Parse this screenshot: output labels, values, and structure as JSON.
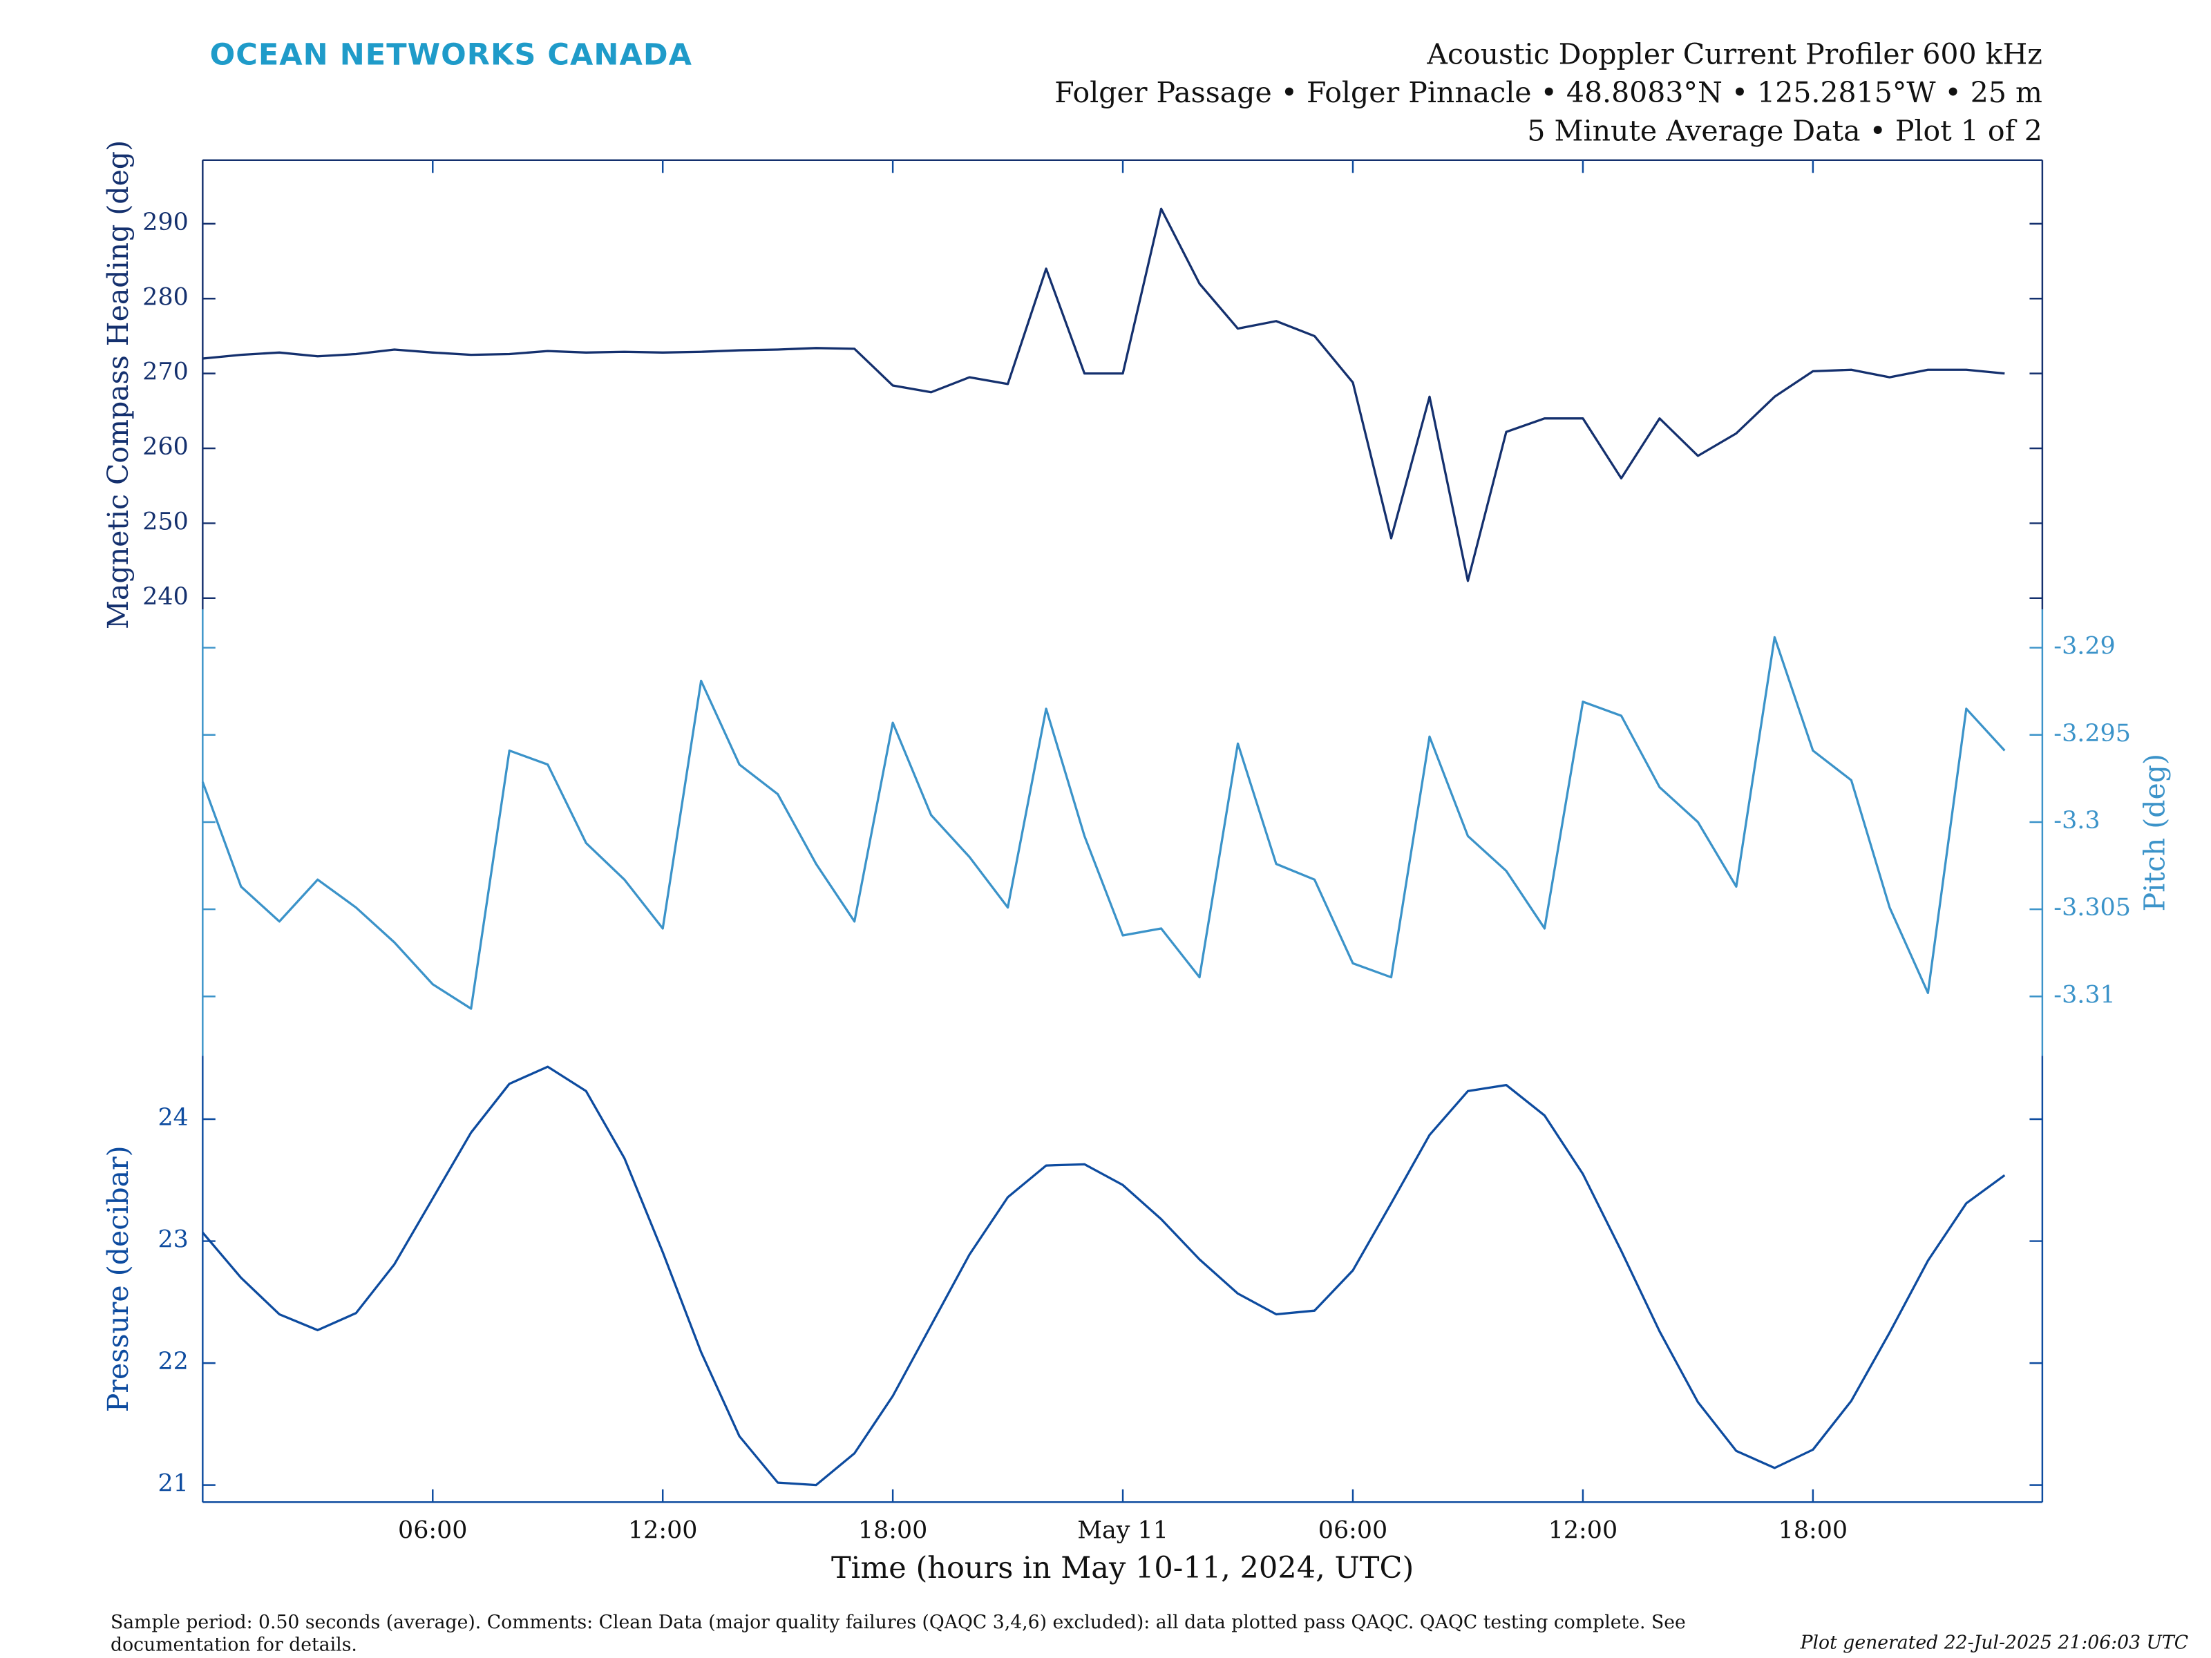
{
  "page": {
    "logo": "OCEAN NETWORKS CANADA",
    "title_lines": [
      "Acoustic Doppler Current Profiler 600 kHz",
      "Folger Passage • Folger Pinnacle • 48.8083°N • 125.2815°W • 25 m",
      "5 Minute Average Data • Plot 1 of 2"
    ],
    "comment": "Sample period: 0.50 seconds (average). Comments: Clean Data (major quality failures (QAQC 3,4,6) excluded): all data plotted pass QAQC. QAQC testing complete. See documentation for details.",
    "generated": "Plot generated 22-Jul-2025 21:06:03 UTC"
  },
  "chart_data": [
    {
      "type": "line",
      "ylabel": "Magnetic Compass Heading (deg)",
      "yaxis": "left",
      "color": "#14306e",
      "xlim": [
        "2024-05-10T00:00",
        "2024-05-11T23:59"
      ],
      "x": [
        "2024-05-10T00:00",
        "2024-05-10T01:00",
        "2024-05-10T02:00",
        "2024-05-10T03:00",
        "2024-05-10T04:00",
        "2024-05-10T05:00",
        "2024-05-10T06:00",
        "2024-05-10T07:00",
        "2024-05-10T08:00",
        "2024-05-10T09:00",
        "2024-05-10T10:00",
        "2024-05-10T11:00",
        "2024-05-10T12:00",
        "2024-05-10T13:00",
        "2024-05-10T14:00",
        "2024-05-10T15:00",
        "2024-05-10T16:00",
        "2024-05-10T17:00",
        "2024-05-10T18:00",
        "2024-05-10T19:00",
        "2024-05-10T20:00",
        "2024-05-10T21:00",
        "2024-05-10T22:00",
        "2024-05-10T23:00",
        "2024-05-11T00:00",
        "2024-05-11T01:00",
        "2024-05-11T02:00",
        "2024-05-11T03:00",
        "2024-05-11T04:00",
        "2024-05-11T05:00",
        "2024-05-11T06:00",
        "2024-05-11T07:00",
        "2024-05-11T08:00",
        "2024-05-11T09:00",
        "2024-05-11T10:00",
        "2024-05-11T11:00",
        "2024-05-11T12:00",
        "2024-05-11T13:00",
        "2024-05-11T14:00",
        "2024-05-11T15:00",
        "2024-05-11T16:00",
        "2024-05-11T17:00",
        "2024-05-11T18:00",
        "2024-05-11T19:00",
        "2024-05-11T20:00",
        "2024-05-11T21:00",
        "2024-05-11T22:00",
        "2024-05-11T23:00"
      ],
      "values": [
        272,
        272.5,
        272.8,
        272.3,
        272.6,
        273.2,
        272.8,
        272.5,
        272.6,
        273,
        272.8,
        272.9,
        272.8,
        272.9,
        273.1,
        273.2,
        273.4,
        273.3,
        268.4,
        267.5,
        269.5,
        268.6,
        284,
        270,
        270,
        292,
        282,
        276,
        277,
        275,
        268.8,
        248,
        266.9,
        242.3,
        262.2,
        264,
        264,
        256,
        264,
        259,
        262,
        266.9,
        270.3,
        270.5,
        269.5,
        270.5,
        270.5,
        270
      ],
      "ylim": [
        238.5,
        298.5
      ],
      "yticks": [
        240,
        250,
        260,
        270,
        280,
        290
      ]
    },
    {
      "type": "line",
      "ylabel": "Pitch (deg)",
      "yaxis": "right",
      "color": "#3b93c9",
      "xlim": [
        "2024-05-10T00:00",
        "2024-05-11T23:59"
      ],
      "x": [
        "2024-05-10T00:00",
        "2024-05-10T01:00",
        "2024-05-10T02:00",
        "2024-05-10T03:00",
        "2024-05-10T04:00",
        "2024-05-10T05:00",
        "2024-05-10T06:00",
        "2024-05-10T07:00",
        "2024-05-10T08:00",
        "2024-05-10T09:00",
        "2024-05-10T10:00",
        "2024-05-10T11:00",
        "2024-05-10T12:00",
        "2024-05-10T13:00",
        "2024-05-10T14:00",
        "2024-05-10T15:00",
        "2024-05-10T16:00",
        "2024-05-10T17:00",
        "2024-05-10T18:00",
        "2024-05-10T19:00",
        "2024-05-10T20:00",
        "2024-05-10T21:00",
        "2024-05-10T22:00",
        "2024-05-10T23:00",
        "2024-05-11T00:00",
        "2024-05-11T01:00",
        "2024-05-11T02:00",
        "2024-05-11T03:00",
        "2024-05-11T04:00",
        "2024-05-11T05:00",
        "2024-05-11T06:00",
        "2024-05-11T07:00",
        "2024-05-11T08:00",
        "2024-05-11T09:00",
        "2024-05-11T10:00",
        "2024-05-11T11:00",
        "2024-05-11T12:00",
        "2024-05-11T13:00",
        "2024-05-11T14:00",
        "2024-05-11T15:00",
        "2024-05-11T16:00",
        "2024-05-11T17:00",
        "2024-05-11T18:00",
        "2024-05-11T19:00",
        "2024-05-11T20:00",
        "2024-05-11T21:00",
        "2024-05-11T22:00",
        "2024-05-11T23:00"
      ],
      "values": [
        -3.2977,
        -3.3037,
        -3.3057,
        -3.3033,
        -3.3049,
        -3.3069,
        -3.3093,
        -3.3107,
        -3.2959,
        -3.2967,
        -3.3012,
        -3.3033,
        -3.3061,
        -3.2919,
        -3.2967,
        -3.2984,
        -3.3024,
        -3.3057,
        -3.2943,
        -3.2996,
        -3.302,
        -3.3049,
        -3.2935,
        -3.3008,
        -3.3065,
        -3.3061,
        -3.3089,
        -3.2955,
        -3.3024,
        -3.3033,
        -3.3081,
        -3.3089,
        -3.2951,
        -3.3008,
        -3.3028,
        -3.3061,
        -3.2931,
        -3.2939,
        -3.298,
        -3.3,
        -3.3037,
        -3.2894,
        -3.2959,
        -3.2976,
        -3.3049,
        -3.3098,
        -3.2935,
        -3.2959
      ],
      "ylim": [
        -3.3134,
        -3.2878
      ],
      "yticks": [
        -3.31,
        -3.305,
        -3.3,
        -3.295,
        -3.29
      ]
    },
    {
      "type": "line",
      "ylabel": "Pressure (decibar)",
      "yaxis": "left",
      "color": "#0d4b9f",
      "xlabel": "Time (hours in May 10-11, 2024, UTC)",
      "xlim": [
        "2024-05-10T00:00",
        "2024-05-11T23:59"
      ],
      "xticks": [
        {
          "value": "2024-05-10T06:00",
          "label": "06:00"
        },
        {
          "value": "2024-05-10T12:00",
          "label": "12:00"
        },
        {
          "value": "2024-05-10T18:00",
          "label": "18:00"
        },
        {
          "value": "2024-05-11T00:00",
          "label": "May 11"
        },
        {
          "value": "2024-05-11T06:00",
          "label": "06:00"
        },
        {
          "value": "2024-05-11T12:00",
          "label": "12:00"
        },
        {
          "value": "2024-05-11T18:00",
          "label": "18:00"
        }
      ],
      "x": [
        "2024-05-10T00:00",
        "2024-05-10T01:00",
        "2024-05-10T02:00",
        "2024-05-10T03:00",
        "2024-05-10T04:00",
        "2024-05-10T05:00",
        "2024-05-10T06:00",
        "2024-05-10T07:00",
        "2024-05-10T08:00",
        "2024-05-10T09:00",
        "2024-05-10T10:00",
        "2024-05-10T11:00",
        "2024-05-10T12:00",
        "2024-05-10T13:00",
        "2024-05-10T14:00",
        "2024-05-10T15:00",
        "2024-05-10T16:00",
        "2024-05-10T17:00",
        "2024-05-10T18:00",
        "2024-05-10T19:00",
        "2024-05-10T20:00",
        "2024-05-10T21:00",
        "2024-05-10T22:00",
        "2024-05-10T23:00",
        "2024-05-11T00:00",
        "2024-05-11T01:00",
        "2024-05-11T02:00",
        "2024-05-11T03:00",
        "2024-05-11T04:00",
        "2024-05-11T05:00",
        "2024-05-11T06:00",
        "2024-05-11T07:00",
        "2024-05-11T08:00",
        "2024-05-11T09:00",
        "2024-05-11T10:00",
        "2024-05-11T11:00",
        "2024-05-11T12:00",
        "2024-05-11T13:00",
        "2024-05-11T14:00",
        "2024-05-11T15:00",
        "2024-05-11T16:00",
        "2024-05-11T17:00",
        "2024-05-11T18:00",
        "2024-05-11T19:00",
        "2024-05-11T20:00",
        "2024-05-11T21:00",
        "2024-05-11T22:00",
        "2024-05-11T23:00"
      ],
      "values": [
        23.07,
        22.7,
        22.4,
        22.27,
        22.41,
        22.81,
        23.35,
        23.89,
        24.29,
        24.43,
        24.23,
        23.68,
        22.91,
        22.09,
        21.4,
        21.02,
        21.0,
        21.26,
        21.73,
        22.31,
        22.89,
        23.36,
        23.62,
        23.63,
        23.46,
        23.18,
        22.85,
        22.57,
        22.4,
        22.43,
        22.76,
        23.31,
        23.87,
        24.23,
        24.28,
        24.03,
        23.55,
        22.92,
        22.26,
        21.68,
        21.28,
        21.14,
        21.29,
        21.69,
        22.25,
        22.84,
        23.31,
        23.54
      ],
      "ylim": [
        20.86,
        24.52
      ],
      "yticks": [
        21,
        22,
        23,
        24
      ]
    }
  ]
}
